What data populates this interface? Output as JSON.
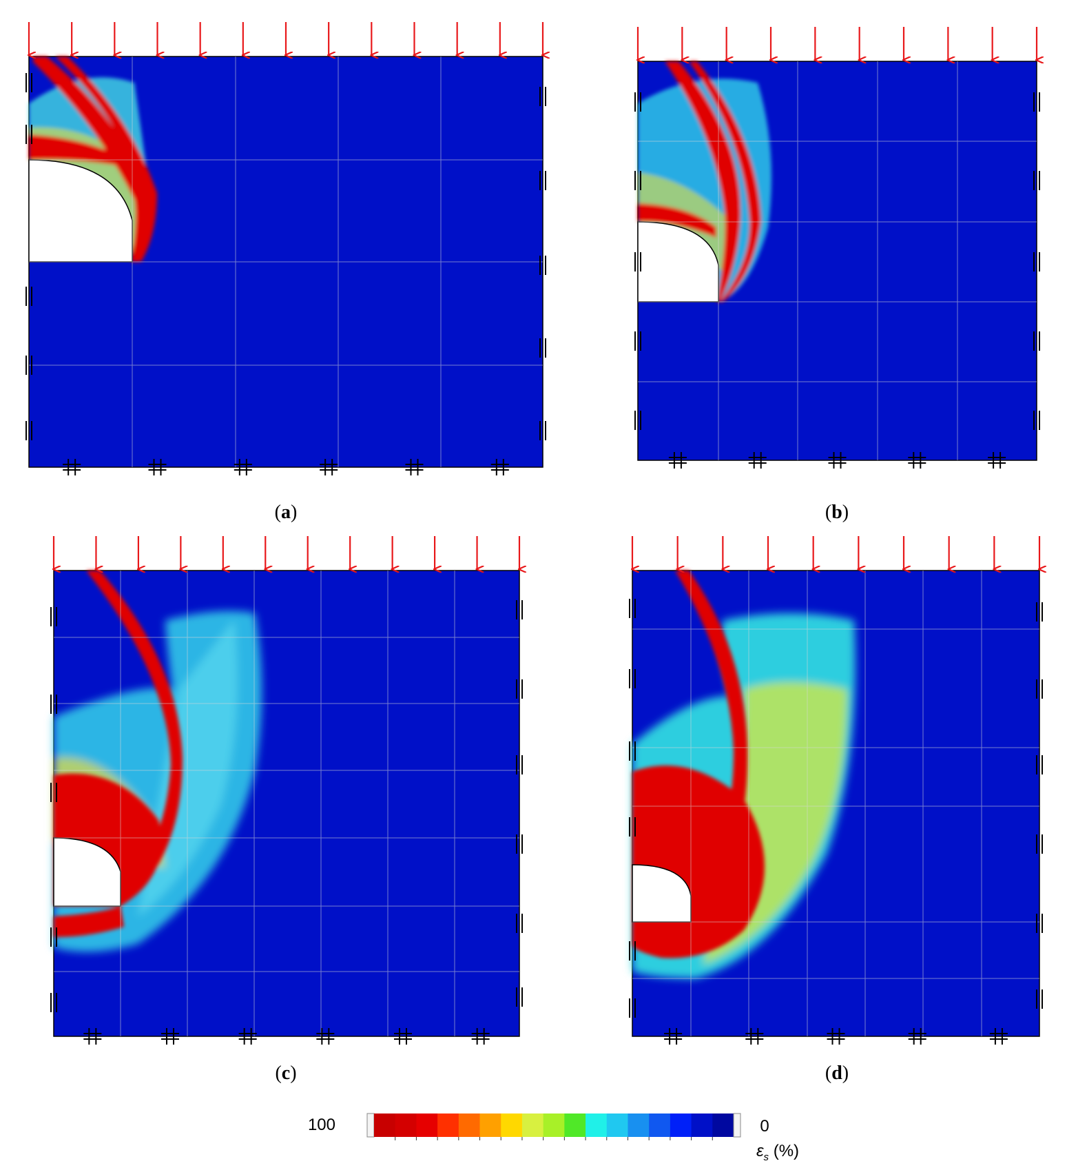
{
  "colors": {
    "background_strain": "#0010c8",
    "load_arrow": "#e8181a",
    "grid": "#d8d8d8",
    "void": "#ffffff"
  },
  "panels": [
    {
      "id": "a",
      "label_open": "(",
      "label_letter": "a",
      "label_close": ")"
    },
    {
      "id": "b",
      "label_open": "(",
      "label_letter": "b",
      "label_close": ")"
    },
    {
      "id": "c",
      "label_open": "(",
      "label_letter": "c",
      "label_close": ")"
    },
    {
      "id": "d",
      "label_open": "(",
      "label_letter": "d",
      "label_close": ")"
    }
  ],
  "legend": {
    "max_label": "100",
    "min_label": "0",
    "quantity_symbol": "ε",
    "quantity_subscript": "s",
    "unit": " (%)",
    "colors": [
      "#c80000",
      "#d40000",
      "#e60000",
      "#ff3000",
      "#ff6a00",
      "#ffa000",
      "#ffd800",
      "#d8f040",
      "#a8f028",
      "#50e828",
      "#20f0e8",
      "#20c8f0",
      "#1890f0",
      "#1058f0",
      "#0020f8",
      "#0010c8",
      "#0008a0"
    ]
  },
  "symbols": {
    "roller_vertical": "||",
    "roller_horizontal": "#"
  }
}
